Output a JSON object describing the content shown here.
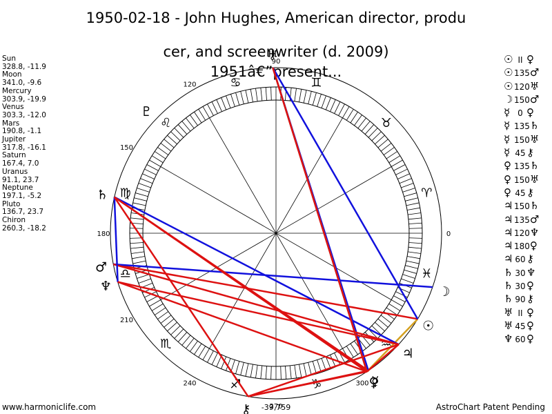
{
  "title_line1": "1950-02-18 - John Hughes, American director, produ",
  "title_line2": "cer, and screenwriter (d. 2009)",
  "title_line3": "1951â€”present...",
  "planets": [
    {
      "name": "Sun",
      "coords": "328.8, -11.9",
      "lon": 328.8,
      "glyph": "☉"
    },
    {
      "name": "Moon",
      "coords": "341.0, -9.6",
      "lon": 341.0,
      "glyph": "☽"
    },
    {
      "name": "Mercury",
      "coords": "303.9, -19.9",
      "lon": 303.9,
      "glyph": "☿"
    },
    {
      "name": "Venus",
      "coords": "303.3, -12.0",
      "lon": 303.3,
      "glyph": "♀"
    },
    {
      "name": "Mars",
      "coords": "190.8, -1.1",
      "lon": 190.8,
      "glyph": "♂"
    },
    {
      "name": "Jupiter",
      "coords": "317.8, -16.1",
      "lon": 317.8,
      "glyph": "♃"
    },
    {
      "name": "Saturn",
      "coords": "167.4, 7.0",
      "lon": 167.4,
      "glyph": "♄"
    },
    {
      "name": "Uranus",
      "coords": "91.1, 23.7",
      "lon": 91.1,
      "glyph": "♅"
    },
    {
      "name": "Neptune",
      "coords": "197.1, -5.2",
      "lon": 197.1,
      "glyph": "♆"
    },
    {
      "name": "Pluto",
      "coords": "136.7, 23.7",
      "lon": 136.7,
      "glyph": "♇"
    },
    {
      "name": "Chiron",
      "coords": "260.3, -18.2",
      "lon": 260.3,
      "glyph": "⚷"
    }
  ],
  "aspects": [
    {
      "p1": "Sun",
      "p2": "Venus",
      "label": "II",
      "color": "#d4a020"
    },
    {
      "p1": "Sun",
      "p2": "Mars",
      "label": "135",
      "color": "#dd1111"
    },
    {
      "p1": "Sun",
      "p2": "Uranus",
      "label": "120",
      "color": "#1111dd"
    },
    {
      "p1": "Moon",
      "p2": "Mars",
      "label": "150",
      "color": "#1111dd"
    },
    {
      "p1": "Mercury",
      "p2": "Venus",
      "label": "0",
      "color": "#d4a020"
    },
    {
      "p1": "Mercury",
      "p2": "Saturn",
      "label": "135",
      "color": "#dd1111"
    },
    {
      "p1": "Mercury",
      "p2": "Uranus",
      "label": "150",
      "color": "#1111dd"
    },
    {
      "p1": "Mercury",
      "p2": "Chiron",
      "label": "45",
      "color": "#dd1111"
    },
    {
      "p1": "Venus",
      "p2": "Saturn",
      "label": "135",
      "color": "#dd1111"
    },
    {
      "p1": "Venus",
      "p2": "Uranus",
      "label": "150",
      "color": "#1111dd"
    },
    {
      "p1": "Venus",
      "p2": "Chiron",
      "label": "45",
      "color": "#dd1111"
    },
    {
      "p1": "Jupiter",
      "p2": "Saturn",
      "label": "150",
      "color": "#1111dd"
    },
    {
      "p1": "Jupiter",
      "p2": "Mars",
      "label": "135",
      "color": "#dd1111"
    },
    {
      "p1": "Jupiter",
      "p2": "Neptune",
      "label": "120",
      "color": "#dd1111"
    },
    {
      "p1": "Jupiter",
      "p2": "Venus",
      "label": "180",
      "color": "#dd1111"
    },
    {
      "p1": "Jupiter",
      "p2": "Chiron",
      "label": "60",
      "color": "#dd1111"
    },
    {
      "p1": "Saturn",
      "p2": "Neptune",
      "label": "30",
      "color": "#1111dd"
    },
    {
      "p1": "Saturn",
      "p2": "Venus",
      "label": "30",
      "color": "#dd1111"
    },
    {
      "p1": "Saturn",
      "p2": "Chiron",
      "label": "90",
      "color": "#dd1111"
    },
    {
      "p1": "Uranus",
      "p2": "Venus",
      "label": "II",
      "color": "#d4a020"
    },
    {
      "p1": "Uranus",
      "p2": "Venus",
      "label": "45",
      "color": "#dd1111"
    },
    {
      "p1": "Neptune",
      "p2": "Venus",
      "label": "60",
      "color": "#dd1111"
    }
  ],
  "signs": [
    {
      "name": "Aries",
      "glyph": "♈",
      "start": 0
    },
    {
      "name": "Taurus",
      "glyph": "♉",
      "start": 30
    },
    {
      "name": "Gemini",
      "glyph": "♊",
      "start": 60
    },
    {
      "name": "Cancer",
      "glyph": "♋",
      "start": 90
    },
    {
      "name": "Leo",
      "glyph": "♌",
      "start": 120
    },
    {
      "name": "Virgo",
      "glyph": "♍",
      "start": 150
    },
    {
      "name": "Libra",
      "glyph": "♎",
      "start": 180
    },
    {
      "name": "Scorpio",
      "glyph": "♏",
      "start": 210
    },
    {
      "name": "Sagittarius",
      "glyph": "♐",
      "start": 240
    },
    {
      "name": "Capricorn",
      "glyph": "♑",
      "start": 270
    },
    {
      "name": "Aquarius",
      "glyph": "♒",
      "start": 300
    },
    {
      "name": "Pisces",
      "glyph": "♓",
      "start": 330
    }
  ],
  "degree_labels": [
    "0",
    "90",
    "120",
    "150",
    "180",
    "210",
    "240",
    "270",
    "300"
  ],
  "bottom_coord": "-39,759",
  "footer_left": "www.harmoniclife.com",
  "footer_right": "AstroChart Patent Pending",
  "colors": {
    "hard": "#dd1111",
    "soft": "#1111dd",
    "parallel": "#d4a020"
  }
}
